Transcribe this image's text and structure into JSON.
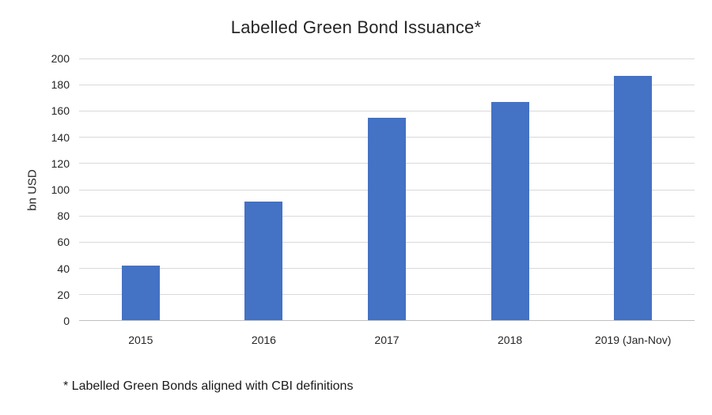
{
  "chart_data": {
    "type": "bar",
    "title": "Labelled Green Bond Issuance*",
    "categories": [
      "2015",
      "2016",
      "2017",
      "2018",
      "2019 (Jan-Nov)"
    ],
    "values": [
      42,
      91,
      155,
      167,
      187
    ],
    "xlabel": "",
    "ylabel": "bn USD",
    "ylim": [
      0,
      200
    ],
    "ytick_step": 20,
    "grid": true,
    "legend": false,
    "footnote": "* Labelled Green Bonds aligned with CBI definitions",
    "colors": {
      "bar": "#4472c4",
      "gridline": "#d9d9d9",
      "axis_line": "#bfbfbf",
      "text": "#262626"
    }
  }
}
